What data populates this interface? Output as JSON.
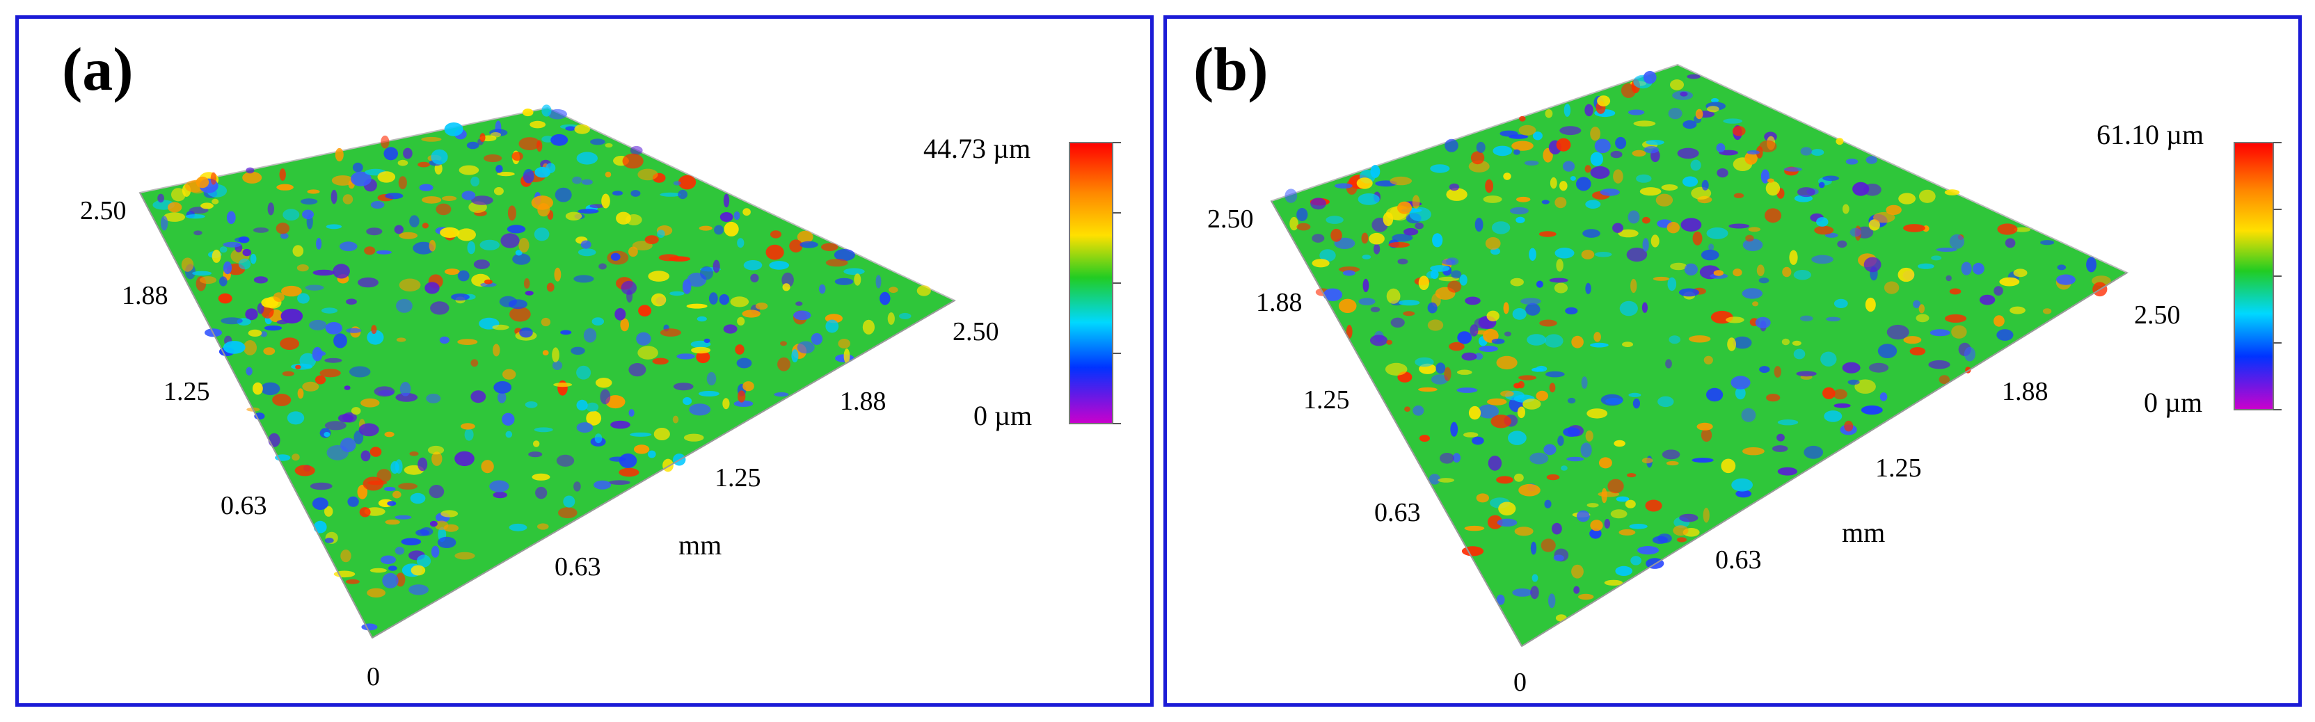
{
  "panels": [
    {
      "tag": "(a)",
      "max_label": "44.73 µm",
      "min_label": "0 µm",
      "y_ticks": [
        "2.50",
        "1.88",
        "1.25",
        "0.63"
      ],
      "x_ticks": [
        "0.63",
        "1.25",
        "1.88",
        "2.50"
      ],
      "origin_label": "0",
      "axis_unit": "mm"
    },
    {
      "tag": "(b)",
      "max_label": "61.10 µm",
      "min_label": "0 µm",
      "y_ticks": [
        "2.50",
        "1.88",
        "1.25",
        "0.63"
      ],
      "x_ticks": [
        "0.63",
        "1.25",
        "1.88",
        "2.50"
      ],
      "origin_label": "0",
      "axis_unit": "mm"
    }
  ],
  "colors": {
    "frame": "#1b1bd6",
    "colormap": [
      "#ff0000",
      "#ff8800",
      "#ffe000",
      "#22cc22",
      "#00d8ff",
      "#0033ff",
      "#cc00cc"
    ]
  }
}
